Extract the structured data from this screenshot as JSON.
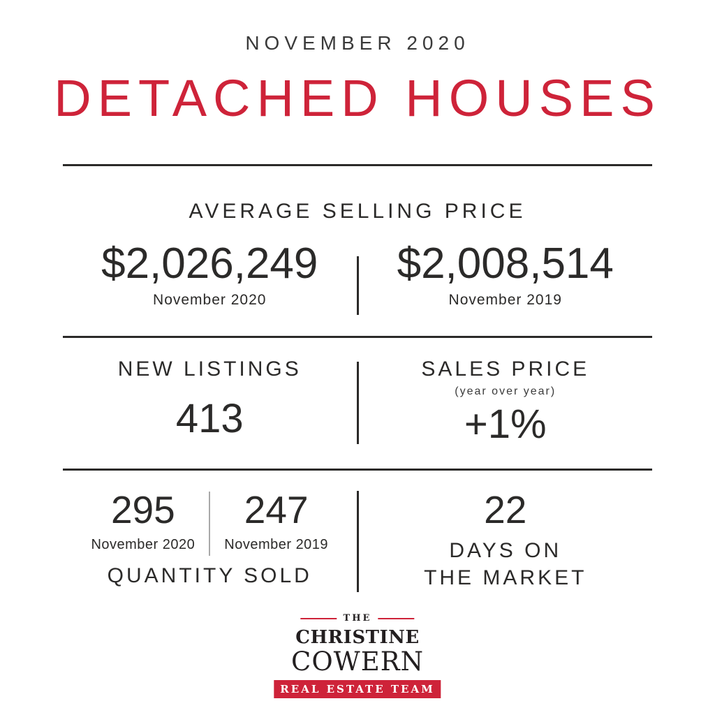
{
  "colors": {
    "accent_red": "#ce2339",
    "text_dark": "#2b2a29"
  },
  "header": {
    "period": "NOVEMBER 2020",
    "title": "DETACHED HOUSES"
  },
  "sections": {
    "average_selling_price": {
      "label": "AVERAGE SELLING PRICE",
      "current": {
        "value": "$2,026,249",
        "period": "November 2020"
      },
      "previous": {
        "value": "$2,008,514",
        "period": "November 2019"
      }
    },
    "new_listings": {
      "label": "NEW LISTINGS",
      "value": "413"
    },
    "sales_price": {
      "label": "SALES PRICE",
      "sublabel": "(year over year)",
      "value": "+1%"
    },
    "quantity_sold": {
      "label": "QUANTITY SOLD",
      "current": {
        "value": "295",
        "period": "November 2020"
      },
      "previous": {
        "value": "247",
        "period": "November 2019"
      }
    },
    "days_on_market": {
      "value": "22",
      "label_line1": "DAYS ON",
      "label_line2": "THE MARKET"
    }
  },
  "logo": {
    "top_label": "THE",
    "name_line1": "CHRISTINE",
    "name_line2": "COWERN",
    "banner": "REAL ESTATE TEAM"
  }
}
